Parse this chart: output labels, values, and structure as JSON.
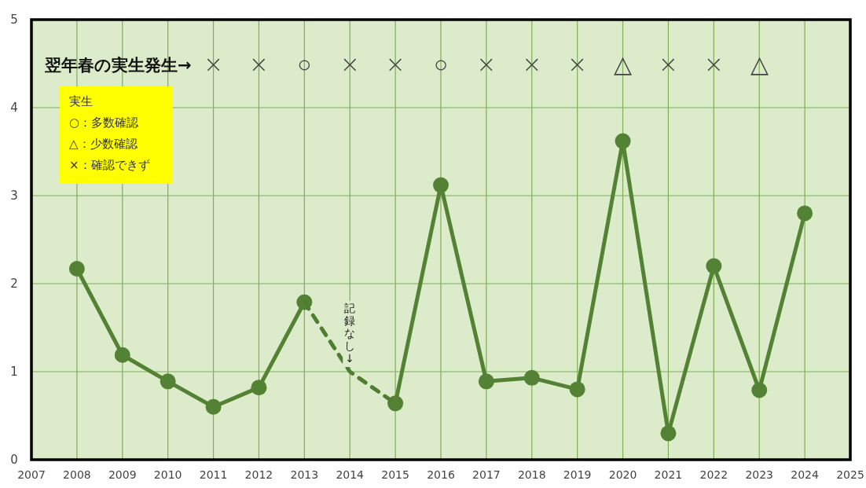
{
  "chart_data": {
    "type": "line",
    "xlim": [
      2007,
      2025
    ],
    "xticks": [
      2007,
      2008,
      2009,
      2010,
      2011,
      2012,
      2013,
      2014,
      2015,
      2016,
      2017,
      2018,
      2019,
      2020,
      2021,
      2022,
      2023,
      2024,
      2025
    ],
    "ylim": [
      0,
      5
    ],
    "yticks": [
      0,
      1,
      2,
      3,
      4,
      5
    ],
    "grid": true,
    "series": [
      {
        "color": "#548235",
        "marker": "circle",
        "line_style": "solid",
        "x": [
          2008,
          2009,
          2010,
          2011,
          2012,
          2013,
          2014,
          2015,
          2016,
          2017,
          2018,
          2019,
          2020,
          2021,
          2022,
          2023,
          2024
        ],
        "values": [
          2.17,
          1.19,
          0.89,
          0.6,
          0.82,
          1.79,
          null,
          0.64,
          3.12,
          0.89,
          0.93,
          0.8,
          3.62,
          0.3,
          2.2,
          0.79,
          2.8
        ]
      },
      {
        "color": "#4f7d31",
        "marker": "none",
        "line_style": "dashed",
        "x": [
          2013,
          2014,
          2015
        ],
        "values": [
          1.79,
          1.0,
          0.64
        ]
      }
    ],
    "annotations": [
      "翌年春の実生発生→",
      "実生",
      "○：多数確認",
      "△：少数確認",
      "×：確認できず",
      {
        "text": "記録なし↓",
        "x": 2014,
        "y": 1.0
      },
      "×",
      "×",
      "○",
      "×",
      "×",
      "○",
      "×",
      "×",
      "×",
      "△",
      "×",
      "×",
      "△"
    ]
  }
}
